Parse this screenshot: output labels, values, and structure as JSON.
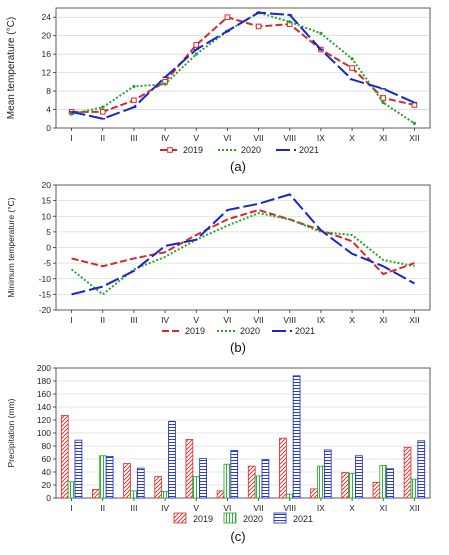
{
  "colors": {
    "s2019": "#d42a2a",
    "s2020": "#27a327",
    "s2021": "#1727c8",
    "axis": "#333333",
    "grid": "#cccccc"
  },
  "chart_data": [
    {
      "type": "line",
      "panel_label": "(a)",
      "ylabel": "Mean temperature (°C)",
      "xlabel": "",
      "categories": [
        "I",
        "II",
        "III",
        "IV",
        "V",
        "VI",
        "VII",
        "VIII",
        "IX",
        "X",
        "XI",
        "XII"
      ],
      "ylim": [
        0,
        26
      ],
      "yticks": [
        0,
        4,
        8,
        12,
        16,
        20,
        24
      ],
      "grid": true,
      "legend_position": "bottom",
      "series": [
        {
          "name": "2019",
          "values": [
            3.5,
            3.5,
            6,
            10,
            18,
            24,
            22,
            22.5,
            17,
            13,
            6.5,
            5
          ]
        },
        {
          "name": "2020",
          "values": [
            3,
            4.5,
            9,
            9.5,
            16,
            21,
            25,
            23,
            20.5,
            15,
            5.5,
            1
          ]
        },
        {
          "name": "2021",
          "values": [
            3.5,
            2,
            4.5,
            11,
            17,
            21,
            25,
            24.5,
            17,
            10.5,
            8.5,
            5.5
          ]
        }
      ]
    },
    {
      "type": "line",
      "panel_label": "(b)",
      "ylabel": "Minimum temperature (°C)",
      "xlabel": "",
      "categories": [
        "I",
        "II",
        "III",
        "IV",
        "V",
        "VI",
        "VII",
        "VIII",
        "IX",
        "X",
        "XI",
        "XII"
      ],
      "ylim": [
        -20,
        20
      ],
      "yticks": [
        -20,
        -15,
        -10,
        -5,
        0,
        5,
        10,
        15,
        20
      ],
      "grid": true,
      "legend_position": "bottom",
      "series": [
        {
          "name": "2019",
          "values": [
            -3.5,
            -6,
            -3.5,
            -1.5,
            4,
            9,
            12,
            9,
            5.5,
            2,
            -8.5,
            -5
          ]
        },
        {
          "name": "2020",
          "values": [
            -7,
            -15,
            -7,
            -3,
            2.5,
            7,
            11,
            9,
            5,
            4,
            -4,
            -6
          ]
        },
        {
          "name": "2021",
          "values": [
            -15,
            -12.5,
            -7.5,
            0.5,
            2.5,
            12,
            14,
            17,
            5.5,
            -2,
            -6,
            -11.5
          ]
        }
      ]
    },
    {
      "type": "bar",
      "panel_label": "(c)",
      "ylabel": "Precipitation (mm)",
      "xlabel": "",
      "categories": [
        "I",
        "II",
        "III",
        "IV",
        "V",
        "VI",
        "VII",
        "VIII",
        "IX",
        "X",
        "XI",
        "XII"
      ],
      "ylim": [
        0,
        200
      ],
      "yticks": [
        0,
        20,
        40,
        60,
        80,
        100,
        120,
        140,
        160,
        180,
        200
      ],
      "grid": true,
      "legend_position": "bottom",
      "series": [
        {
          "name": "2019",
          "values": [
            127,
            13,
            53,
            33,
            90,
            11,
            49,
            92,
            14,
            39,
            24,
            78
          ]
        },
        {
          "name": "2020",
          "values": [
            25,
            65,
            11,
            10,
            33,
            52,
            34,
            6,
            49,
            38,
            50,
            29
          ]
        },
        {
          "name": "2021",
          "values": [
            89,
            64,
            46,
            118,
            61,
            73,
            59,
            188,
            74,
            65,
            45,
            88
          ]
        }
      ]
    }
  ]
}
